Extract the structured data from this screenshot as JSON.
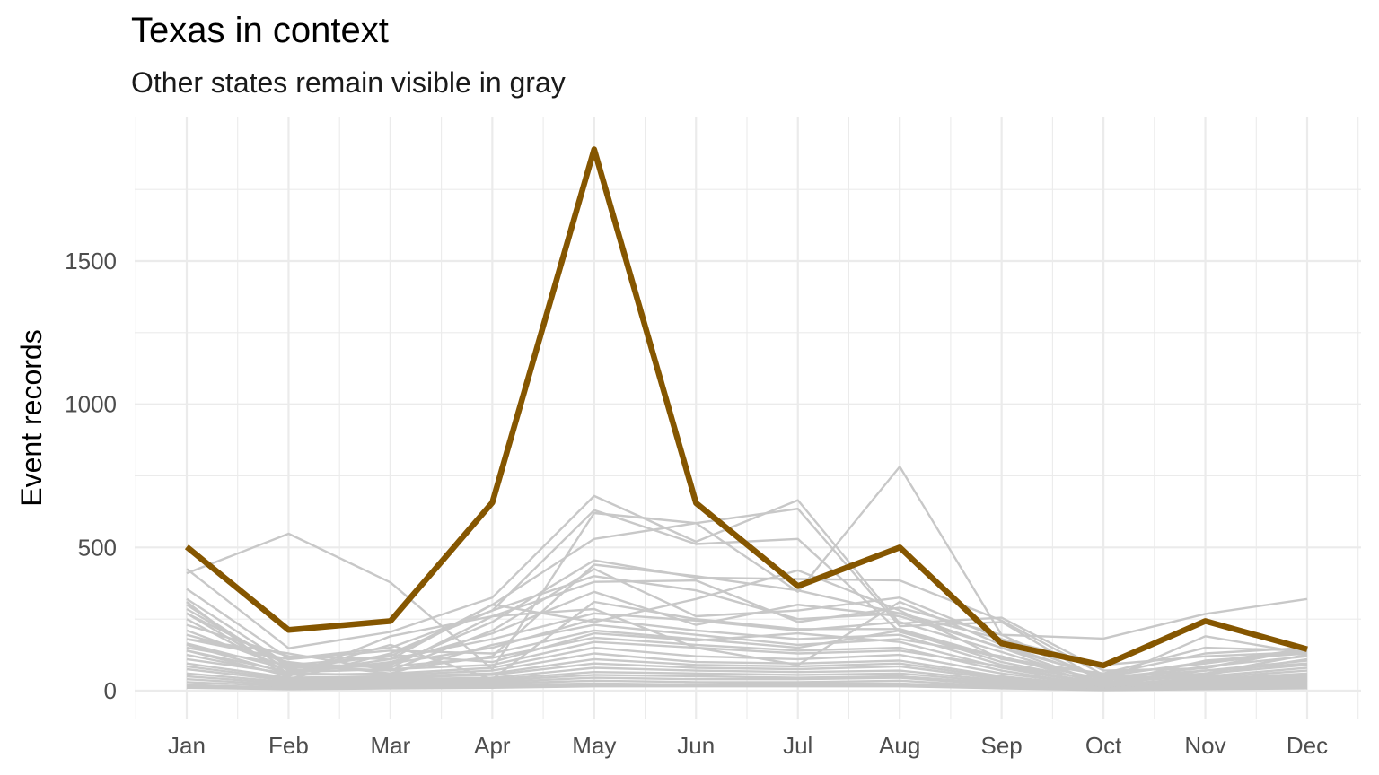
{
  "chart_data": {
    "type": "line",
    "title": "Texas in context",
    "subtitle": "Other states remain visible in gray",
    "xlabel": "",
    "ylabel": "Event records",
    "categories": [
      "Jan",
      "Feb",
      "Mar",
      "Apr",
      "May",
      "Jun",
      "Jul",
      "Aug",
      "Sep",
      "Oct",
      "Nov",
      "Dec"
    ],
    "ylim": [
      -75,
      1950
    ],
    "yticks": [
      0,
      500,
      1000,
      1500
    ],
    "grid": true,
    "legend": "none",
    "highlight": {
      "name": "Texas",
      "values": [
        502,
        212,
        243,
        657,
        1890,
        655,
        365,
        500,
        165,
        88,
        243,
        145
      ],
      "color": "#855600"
    },
    "context_color": "#c8c8c8",
    "context_series": [
      [
        410,
        548,
        378,
        75,
        620,
        585,
        345,
        782,
        195,
        182,
        268,
        320
      ],
      [
        425,
        148,
        205,
        325,
        680,
        520,
        665,
        235,
        255,
        70,
        78,
        145
      ],
      [
        355,
        112,
        150,
        280,
        630,
        512,
        530,
        205,
        112,
        40,
        60,
        125
      ],
      [
        320,
        90,
        120,
        300,
        530,
        585,
        635,
        225,
        240,
        30,
        55,
        110
      ],
      [
        300,
        70,
        90,
        240,
        455,
        395,
        390,
        385,
        245,
        55,
        95,
        140
      ],
      [
        285,
        85,
        70,
        210,
        425,
        260,
        280,
        325,
        180,
        45,
        70,
        95
      ],
      [
        270,
        95,
        80,
        260,
        380,
        385,
        240,
        290,
        195,
        35,
        85,
        120
      ],
      [
        250,
        60,
        100,
        200,
        345,
        230,
        300,
        260,
        150,
        25,
        105,
        130
      ],
      [
        230,
        120,
        110,
        180,
        270,
        245,
        210,
        240,
        135,
        28,
        70,
        105
      ],
      [
        210,
        80,
        95,
        150,
        250,
        210,
        180,
        195,
        90,
        35,
        190,
        130
      ],
      [
        195,
        100,
        60,
        160,
        230,
        195,
        160,
        180,
        120,
        22,
        60,
        90
      ],
      [
        180,
        110,
        140,
        130,
        210,
        180,
        150,
        210,
        100,
        30,
        50,
        80
      ],
      [
        165,
        75,
        125,
        100,
        200,
        175,
        200,
        170,
        80,
        20,
        45,
        70
      ],
      [
        150,
        90,
        85,
        115,
        185,
        160,
        140,
        150,
        70,
        15,
        40,
        60
      ],
      [
        140,
        65,
        75,
        90,
        170,
        150,
        130,
        140,
        85,
        25,
        35,
        55
      ],
      [
        125,
        55,
        60,
        80,
        150,
        120,
        110,
        125,
        60,
        18,
        30,
        50
      ],
      [
        110,
        60,
        55,
        70,
        130,
        100,
        95,
        105,
        50,
        15,
        28,
        45
      ],
      [
        95,
        45,
        50,
        60,
        110,
        90,
        85,
        95,
        45,
        12,
        25,
        40
      ],
      [
        85,
        40,
        45,
        55,
        95,
        80,
        75,
        85,
        40,
        10,
        22,
        35
      ],
      [
        75,
        35,
        40,
        45,
        80,
        70,
        65,
        70,
        35,
        10,
        20,
        30
      ],
      [
        60,
        30,
        35,
        40,
        65,
        60,
        55,
        60,
        30,
        8,
        18,
        25
      ],
      [
        50,
        25,
        30,
        35,
        55,
        50,
        45,
        50,
        25,
        8,
        15,
        22
      ],
      [
        40,
        20,
        25,
        30,
        45,
        40,
        40,
        45,
        20,
        6,
        12,
        18
      ],
      [
        30,
        15,
        20,
        25,
        35,
        30,
        30,
        35,
        15,
        5,
        10,
        15
      ],
      [
        20,
        10,
        15,
        20,
        25,
        22,
        25,
        25,
        12,
        4,
        8,
        12
      ],
      [
        15,
        8,
        10,
        15,
        20,
        18,
        20,
        20,
        10,
        3,
        6,
        10
      ],
      [
        10,
        5,
        8,
        10,
        15,
        15,
        15,
        15,
        8,
        2,
        5,
        8
      ],
      [
        140,
        50,
        190,
        260,
        285,
        150,
        90,
        310,
        160,
        45,
        80,
        150
      ],
      [
        270,
        60,
        110,
        300,
        240,
        320,
        420,
        280,
        110,
        60,
        150,
        140
      ],
      [
        180,
        130,
        70,
        120,
        440,
        400,
        350,
        270,
        150,
        50,
        100,
        145
      ],
      [
        310,
        40,
        130,
        280,
        400,
        350,
        250,
        270,
        180,
        90,
        120,
        135
      ],
      [
        160,
        60,
        160,
        40,
        310,
        250,
        215,
        215,
        115,
        55,
        130,
        150
      ]
    ]
  }
}
